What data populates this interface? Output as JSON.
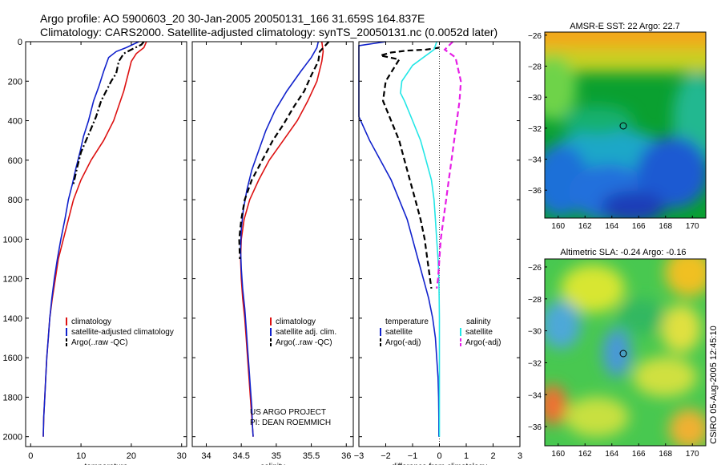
{
  "header": {
    "line1": "Argo profile: AO 5900603_20 30-Jan-2005 20050131_166 31.659S 164.837E",
    "line2": "Climatology: CARS2000. Satellite-adjusted climatology: synTS_20050131.nc (0.0052d later)"
  },
  "side_text": "CSIRO 05-Aug-2005 12:45:10",
  "colors": {
    "climatology": "#dd1111",
    "satellite": "#1122cc",
    "argo": "#000000",
    "salinity_sat": "#22e6e6",
    "salinity_argo": "#e61ee6"
  },
  "credits": {
    "line1": "US ARGO PROJECT",
    "line2": "PI: DEAN ROEMMICH"
  },
  "chart_data": [
    {
      "type": "line",
      "xlabel": "temperature",
      "ylabel": "",
      "xlim": [
        -1,
        31
      ],
      "ylim": [
        2050,
        0
      ],
      "x_ticks": [
        0,
        10,
        20,
        30
      ],
      "y_ticks": [
        0,
        200,
        400,
        600,
        800,
        1000,
        1200,
        1400,
        1600,
        1800,
        2000
      ],
      "legend": [
        "climatology",
        "satellite-adjusted climatology",
        "Argo(..raw -QC)"
      ],
      "series": [
        {
          "name": "climatology",
          "style": "solid",
          "color_key": "climatology",
          "points": [
            [
              23,
              0
            ],
            [
              22.5,
              30
            ],
            [
              21,
              60
            ],
            [
              20,
              100
            ],
            [
              19.5,
              150
            ],
            [
              18.5,
              250
            ],
            [
              16.5,
              400
            ],
            [
              14.5,
              500
            ],
            [
              12,
              600
            ],
            [
              10,
              700
            ],
            [
              8.5,
              800
            ],
            [
              7.5,
              900
            ],
            [
              6.5,
              1000
            ],
            [
              5.5,
              1100
            ],
            [
              4.9,
              1200
            ],
            [
              4.3,
              1300
            ],
            [
              3.8,
              1400
            ],
            [
              3.5,
              1500
            ],
            [
              3.2,
              1600
            ],
            [
              3.0,
              1700
            ],
            [
              2.8,
              1800
            ],
            [
              2.6,
              1900
            ],
            [
              2.5,
              2000
            ]
          ]
        },
        {
          "name": "satellite-adjusted climatology",
          "style": "solid",
          "color_key": "satellite",
          "points": [
            [
              21.5,
              0
            ],
            [
              19,
              30
            ],
            [
              17,
              50
            ],
            [
              15.5,
              80
            ],
            [
              14.5,
              150
            ],
            [
              13.5,
              230
            ],
            [
              12.5,
              300
            ],
            [
              11.5,
              400
            ],
            [
              10.5,
              480
            ],
            [
              9.8,
              560
            ],
            [
              9,
              640
            ],
            [
              8.3,
              720
            ],
            [
              7.5,
              800
            ],
            [
              6.8,
              900
            ],
            [
              6,
              1000
            ],
            [
              5.3,
              1100
            ],
            [
              4.7,
              1200
            ],
            [
              4.2,
              1300
            ],
            [
              3.8,
              1400
            ],
            [
              3.5,
              1500
            ],
            [
              3.2,
              1600
            ],
            [
              3.0,
              1700
            ],
            [
              2.8,
              1800
            ],
            [
              2.6,
              1900
            ],
            [
              2.5,
              2000
            ]
          ]
        },
        {
          "name": "Argo(..raw -QC)",
          "style": "dashdot",
          "color_key": "argo",
          "points": [
            [
              22.5,
              0
            ],
            [
              22,
              15
            ],
            [
              20,
              40
            ],
            [
              18.5,
              60
            ],
            [
              17.5,
              100
            ],
            [
              17,
              160
            ],
            [
              16,
              200
            ],
            [
              15,
              250
            ],
            [
              14,
              300
            ],
            [
              13,
              380
            ],
            [
              12,
              440
            ],
            [
              11,
              500
            ],
            [
              10,
              560
            ],
            [
              9.2,
              640
            ],
            [
              8.5,
              720
            ]
          ]
        }
      ]
    },
    {
      "type": "line",
      "xlabel": "salinity",
      "ylabel": "",
      "xlim": [
        33.8,
        36.1
      ],
      "ylim": [
        2050,
        0
      ],
      "x_ticks": [
        34,
        34.5,
        35,
        35.5,
        36
      ],
      "y_ticks": [
        0,
        200,
        400,
        600,
        800,
        1000,
        1200,
        1400,
        1600,
        1800,
        2000
      ],
      "legend": [
        "climatology",
        "satellite adj. clim.",
        "Argo(..raw -QC)"
      ],
      "series": [
        {
          "name": "climatology",
          "style": "solid",
          "color_key": "climatology",
          "points": [
            [
              35.65,
              0
            ],
            [
              35.67,
              50
            ],
            [
              35.65,
              100
            ],
            [
              35.58,
              200
            ],
            [
              35.45,
              300
            ],
            [
              35.3,
              400
            ],
            [
              35.1,
              500
            ],
            [
              34.9,
              600
            ],
            [
              34.75,
              700
            ],
            [
              34.62,
              800
            ],
            [
              34.54,
              900
            ],
            [
              34.5,
              1000
            ],
            [
              34.49,
              1100
            ],
            [
              34.5,
              1200
            ],
            [
              34.52,
              1300
            ],
            [
              34.55,
              1400
            ],
            [
              34.57,
              1500
            ],
            [
              34.59,
              1600
            ],
            [
              34.61,
              1700
            ],
            [
              34.63,
              1800
            ],
            [
              34.65,
              1900
            ],
            [
              34.67,
              2000
            ]
          ]
        },
        {
          "name": "satellite adj. clim.",
          "style": "solid",
          "color_key": "satellite",
          "points": [
            [
              35.6,
              0
            ],
            [
              35.58,
              30
            ],
            [
              35.5,
              80
            ],
            [
              35.35,
              150
            ],
            [
              35.15,
              250
            ],
            [
              34.98,
              350
            ],
            [
              34.85,
              450
            ],
            [
              34.75,
              550
            ],
            [
              34.65,
              650
            ],
            [
              34.58,
              750
            ],
            [
              34.53,
              850
            ],
            [
              34.5,
              950
            ],
            [
              34.49,
              1050
            ],
            [
              34.5,
              1150
            ],
            [
              34.52,
              1250
            ],
            [
              34.55,
              1350
            ],
            [
              34.57,
              1450
            ],
            [
              34.59,
              1550
            ],
            [
              34.61,
              1650
            ],
            [
              34.63,
              1750
            ],
            [
              34.65,
              1850
            ],
            [
              34.66,
              1950
            ],
            [
              34.67,
              2000
            ]
          ]
        },
        {
          "name": "Argo(..raw -QC)",
          "style": "dashed",
          "color_key": "argo",
          "points": [
            [
              35.75,
              0
            ],
            [
              35.7,
              20
            ],
            [
              35.62,
              50
            ],
            [
              35.6,
              100
            ],
            [
              35.5,
              170
            ],
            [
              35.4,
              250
            ],
            [
              35.25,
              330
            ],
            [
              35.1,
              420
            ],
            [
              34.95,
              500
            ],
            [
              34.8,
              600
            ],
            [
              34.65,
              700
            ],
            [
              34.55,
              800
            ],
            [
              34.5,
              900
            ],
            [
              34.47,
              1000
            ],
            [
              34.48,
              1100
            ]
          ]
        }
      ]
    },
    {
      "type": "line",
      "xlabel": "difference from climatology",
      "ylabel": "",
      "xlim": [
        -3,
        3
      ],
      "ylim": [
        2050,
        0
      ],
      "x_ticks": [
        -3,
        -2,
        -1,
        0,
        1,
        2,
        3
      ],
      "y_ticks": [
        0,
        200,
        400,
        600,
        800,
        1000,
        1200,
        1400,
        1600,
        1800,
        2000
      ],
      "legend_left": {
        "title": "temperature",
        "items": [
          "satellite",
          "Argo(-adj)"
        ]
      },
      "legend_right": {
        "title": "salinity",
        "items": [
          "satellite",
          "Argo(-adj)"
        ]
      },
      "series": [
        {
          "name": "satellite",
          "group": "temperature",
          "style": "solid",
          "color_key": "satellite",
          "points": [
            [
              -2,
              0
            ],
            [
              -3,
              20
            ],
            [
              -3,
              380
            ],
            [
              -2.6,
              500
            ],
            [
              -2.2,
              600
            ],
            [
              -1.8,
              700
            ],
            [
              -1.5,
              800
            ],
            [
              -1.2,
              900
            ],
            [
              -1,
              1000
            ],
            [
              -0.8,
              1100
            ],
            [
              -0.6,
              1200
            ],
            [
              -0.4,
              1300
            ],
            [
              -0.25,
              1400
            ],
            [
              -0.15,
              1500
            ],
            [
              -0.1,
              1600
            ],
            [
              -0.05,
              1700
            ],
            [
              -0.03,
              1800
            ],
            [
              -0.02,
              1900
            ],
            [
              -0.02,
              2000
            ]
          ]
        },
        {
          "name": "Argo(-adj)",
          "group": "temperature",
          "style": "dashed",
          "color_key": "argo",
          "points": [
            [
              0,
              30
            ],
            [
              -0.5,
              40
            ],
            [
              -1.2,
              45
            ],
            [
              -1.8,
              55
            ],
            [
              -2.2,
              70
            ],
            [
              -1.5,
              90
            ],
            [
              -2,
              200
            ],
            [
              -2.1,
              300
            ],
            [
              -1.8,
              400
            ],
            [
              -1.5,
              500
            ],
            [
              -1.3,
              600
            ],
            [
              -1.1,
              700
            ],
            [
              -0.9,
              800
            ],
            [
              -0.7,
              900
            ],
            [
              -0.55,
              1000
            ],
            [
              -0.45,
              1100
            ],
            [
              -0.35,
              1200
            ],
            [
              -0.3,
              1250
            ]
          ]
        },
        {
          "name": "satellite",
          "group": "salinity",
          "style": "solid",
          "color_key": "salinity_sat",
          "points": [
            [
              -0.1,
              0
            ],
            [
              -0.2,
              40
            ],
            [
              -0.6,
              80
            ],
            [
              -1,
              120
            ],
            [
              -1.4,
              200
            ],
            [
              -1.45,
              260
            ],
            [
              -1.3,
              300
            ],
            [
              -1,
              400
            ],
            [
              -0.7,
              500
            ],
            [
              -0.5,
              600
            ],
            [
              -0.3,
              700
            ],
            [
              -0.2,
              800
            ],
            [
              -0.15,
              900
            ],
            [
              -0.1,
              1000
            ],
            [
              -0.05,
              1100
            ],
            [
              -0.02,
              1200
            ],
            [
              -0.01,
              1300
            ],
            [
              0,
              1400
            ],
            [
              0,
              2000
            ]
          ]
        },
        {
          "name": "Argo(-adj)",
          "group": "salinity",
          "style": "dashed",
          "color_key": "salinity_argo",
          "points": [
            [
              0.5,
              0
            ],
            [
              0.2,
              40
            ],
            [
              0.6,
              80
            ],
            [
              0.8,
              200
            ],
            [
              0.75,
              300
            ],
            [
              0.65,
              400
            ],
            [
              0.55,
              500
            ],
            [
              0.45,
              600
            ],
            [
              0.35,
              700
            ],
            [
              0.25,
              800
            ],
            [
              0.15,
              900
            ],
            [
              0.05,
              1000
            ],
            [
              0,
              1100
            ],
            [
              -0.05,
              1200
            ],
            [
              -0.1,
              1250
            ]
          ]
        }
      ]
    },
    {
      "type": "heatmap",
      "title": "AMSR-E SST: 22 Argo: 22.7",
      "xlim": [
        159,
        171
      ],
      "ylim": [
        -37.8,
        -25.8
      ],
      "x_ticks": [
        160,
        162,
        164,
        166,
        168,
        170
      ],
      "y_ticks": [
        -26,
        -28,
        -30,
        -32,
        -34,
        -36
      ],
      "marker": {
        "x": 164.84,
        "y": -31.66
      }
    },
    {
      "type": "heatmap",
      "title": "Altimetric SLA: -0.24 Argo: -0.16",
      "xlim": [
        159,
        171
      ],
      "ylim": [
        -37.2,
        -25.5
      ],
      "x_ticks": [
        160,
        162,
        164,
        166,
        168,
        170
      ],
      "y_ticks": [
        -26,
        -28,
        -30,
        -32,
        -34,
        -36
      ],
      "marker": {
        "x": 164.84,
        "y": -31.66
      }
    }
  ]
}
